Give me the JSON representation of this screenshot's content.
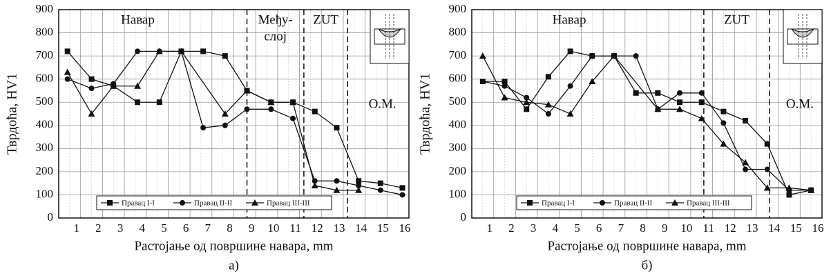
{
  "chart_data": [
    {
      "type": "line",
      "caption": "а)",
      "xlabel": "Растојање од површине навара, mm",
      "ylabel": "Тврдоћа, HV1",
      "xlim": [
        0,
        16
      ],
      "ylim": [
        0,
        900
      ],
      "xticks": [
        1,
        2,
        3,
        4,
        5,
        6,
        7,
        8,
        9,
        10,
        11,
        12,
        13,
        14,
        15,
        16
      ],
      "yticks": [
        0,
        100,
        200,
        300,
        400,
        500,
        600,
        700,
        800,
        900
      ],
      "grid": true,
      "vlines": [
        8.6,
        11.2,
        13.2
      ],
      "annotations": [
        [
          "Навар"
        ],
        [
          "Међу-",
          "слој"
        ],
        [
          "ZUT"
        ],
        [
          "О.М."
        ]
      ],
      "series": [
        {
          "name": "Правац  I-I",
          "marker": "square",
          "color": "#111",
          "x": [
            0.4,
            1.5,
            2.5,
            3.6,
            4.6,
            5.6,
            6.6,
            7.6,
            8.6,
            9.7,
            10.7,
            11.7,
            12.7,
            13.7,
            14.7,
            15.7
          ],
          "values": [
            720,
            600,
            570,
            500,
            500,
            720,
            720,
            700,
            550,
            500,
            500,
            460,
            390,
            160,
            150,
            130
          ]
        },
        {
          "name": "Правац  II-II",
          "marker": "circle",
          "color": "#111",
          "x": [
            0.4,
            1.5,
            2.5,
            3.6,
            4.6,
            5.6,
            6.6,
            7.6,
            8.6,
            9.7,
            10.7,
            11.7,
            12.7,
            13.7,
            14.7,
            15.7
          ],
          "values": [
            600,
            560,
            580,
            720,
            720,
            720,
            390,
            400,
            470,
            470,
            430,
            160,
            160,
            140,
            120,
            100
          ]
        },
        {
          "name": "Правац  III-III",
          "marker": "triangle",
          "color": "#111",
          "x": [
            0.4,
            1.5,
            2.5,
            3.6,
            4.6,
            5.6,
            7.6,
            8.6,
            9.7,
            10.7,
            11.7,
            12.7,
            13.7
          ],
          "values": [
            630,
            450,
            570,
            570,
            720,
            720,
            450,
            550,
            500,
            500,
            140,
            120,
            120
          ]
        }
      ]
    },
    {
      "type": "line",
      "caption": "б)",
      "xlabel": "Растојање од површине навара, mm",
      "ylabel": "Тврдоћа, HV1",
      "xlim": [
        0,
        16
      ],
      "ylim": [
        0,
        900
      ],
      "xticks": [
        1,
        2,
        3,
        4,
        5,
        6,
        7,
        8,
        9,
        10,
        11,
        12,
        13,
        14,
        15,
        16
      ],
      "yticks": [
        0,
        100,
        200,
        300,
        400,
        500,
        600,
        700,
        800,
        900
      ],
      "grid": true,
      "vlines": [
        10.6,
        13.6
      ],
      "annotations": [
        [
          "Навар"
        ],
        [
          "ZUT"
        ],
        [
          "О.М."
        ]
      ],
      "series": [
        {
          "name": "Правац  I-I",
          "marker": "square",
          "color": "#111",
          "x": [
            0.5,
            1.5,
            2.5,
            3.5,
            4.5,
            5.5,
            6.5,
            7.5,
            8.5,
            9.5,
            10.5,
            11.5,
            12.5,
            13.5,
            14.5,
            15.5
          ],
          "values": [
            590,
            590,
            470,
            610,
            720,
            700,
            700,
            540,
            540,
            500,
            500,
            460,
            420,
            320,
            100,
            120
          ]
        },
        {
          "name": "Правац  II-II",
          "marker": "circle",
          "color": "#111",
          "x": [
            0.5,
            1.5,
            2.5,
            3.5,
            4.5,
            5.5,
            6.5,
            7.5,
            8.5,
            9.5,
            10.5,
            11.5,
            12.5,
            13.5,
            14.5,
            15.5
          ],
          "values": [
            590,
            570,
            520,
            450,
            570,
            700,
            700,
            700,
            470,
            540,
            540,
            410,
            210,
            210,
            120,
            120
          ]
        },
        {
          "name": "Правац  III-III",
          "marker": "triangle",
          "color": "#111",
          "x": [
            0.5,
            1.5,
            2.5,
            3.5,
            4.5,
            5.5,
            6.5,
            8.5,
            9.5,
            10.5,
            11.5,
            12.5,
            13.5,
            14.5,
            15.5
          ],
          "values": [
            700,
            520,
            500,
            490,
            450,
            590,
            700,
            470,
            470,
            430,
            320,
            240,
            130,
            130,
            120
          ]
        }
      ]
    }
  ]
}
